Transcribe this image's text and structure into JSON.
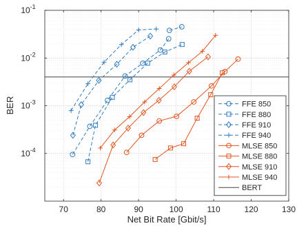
{
  "chart_data": {
    "type": "line",
    "xlabel": "Net Bit Rate [Gbit/s]",
    "ylabel": "BER",
    "xlim": [
      65,
      130
    ],
    "ylim": [
      1e-05,
      0.1
    ],
    "yscale": "log",
    "x_ticks": [
      70,
      80,
      90,
      100,
      110,
      120,
      130
    ],
    "x_tick_labels": [
      "70",
      "80",
      "90",
      "100",
      "110",
      "120",
      "130"
    ],
    "y_ticks": [
      0.0001,
      0.001,
      0.01,
      0.1
    ],
    "y_tick_labels": [
      {
        "base": "10",
        "exp": "-4"
      },
      {
        "base": "10",
        "exp": "-3"
      },
      {
        "base": "10",
        "exp": "-2"
      },
      {
        "base": "10",
        "exp": "-1"
      }
    ],
    "grid": true,
    "minor_grid": true,
    "legend_position": "bottom-right",
    "colors": {
      "ffe": "#2f7bbf",
      "mlse": "#e0541d",
      "bert": "#404040"
    },
    "series": [
      {
        "name": "FFE 850",
        "family": "ffe",
        "marker": "circle",
        "linestyle": "dashed",
        "x": [
          72.4,
          77.0,
          81.7,
          86.4,
          91.1,
          95.8,
          98.0
        ],
        "y": [
          9.5e-05,
          0.00037,
          0.0013,
          0.0042,
          0.0078,
          0.0147,
          0.0253
        ]
      },
      {
        "name": "FFE 880",
        "family": "ffe",
        "marker": "square",
        "linestyle": "dashed",
        "x": [
          76.5,
          78.5,
          83.0,
          87.7,
          92.4,
          97.0,
          101.6
        ],
        "y": [
          6.7e-05,
          0.00039,
          0.0015,
          0.0035,
          0.0078,
          0.0134,
          0.0192
        ]
      },
      {
        "name": "FFE 910",
        "family": "ffe",
        "marker": "diamond",
        "linestyle": "dashed",
        "x": [
          72.5,
          74.7,
          79.4,
          84.2,
          88.5,
          93.1
        ],
        "y": [
          0.00024,
          0.00105,
          0.0034,
          0.0074,
          0.0168,
          0.0288
        ]
      },
      {
        "name": "FFE 940",
        "family": "ffe",
        "marker": "plus",
        "linestyle": "dashed",
        "x": [
          72.0,
          76.5,
          80.8,
          85.4,
          90.0,
          94.7
        ],
        "y": [
          0.00079,
          0.0029,
          0.0082,
          0.0191,
          0.0389,
          0.0406
        ]
      },
      {
        "name": "FFE 940 ",
        "family": "ffe",
        "marker": "circle",
        "linestyle": "dashed",
        "x": [
          98.2,
          101.5
        ],
        "y": [
          0.0379,
          0.0451
        ]
      },
      {
        "name": "MLSE 850",
        "family": "mlse",
        "marker": "circle",
        "linestyle": "solid",
        "x": [
          86.8,
          90.8,
          95.5,
          100.1,
          104.7,
          109.4,
          113.0,
          116.5
        ],
        "y": [
          0.000105,
          0.00024,
          0.00048,
          0.0006,
          0.0012,
          0.0026,
          0.0052,
          0.0095
        ]
      },
      {
        "name": "MLSE 880",
        "family": "mlse",
        "marker": "square",
        "linestyle": "solid",
        "x": [
          94.4,
          98.5,
          102.0,
          105.6,
          109.2,
          112.3
        ],
        "y": [
          7.5e-05,
          0.00013,
          0.00016,
          0.00055,
          0.0017,
          0.0049
        ]
      },
      {
        "name": "MLSE 910",
        "family": "mlse",
        "marker": "diamond",
        "linestyle": "solid",
        "x": [
          79.5,
          83.2,
          87.2,
          91.3,
          95.4,
          99.5,
          103.5,
          108.5
        ],
        "y": [
          2.4e-05,
          0.00015,
          0.00034,
          0.00072,
          0.0013,
          0.0025,
          0.0053,
          0.0106
        ]
      },
      {
        "name": "MLSE 940",
        "family": "mlse",
        "marker": "plus",
        "linestyle": "solid",
        "x": [
          79.8,
          83.6,
          87.6,
          91.6,
          95.5,
          99.4,
          103.3,
          107.0,
          110.5
        ],
        "y": [
          0.00013,
          0.00031,
          0.00059,
          0.0012,
          0.0023,
          0.0044,
          0.008,
          0.0139,
          0.0299
        ]
      }
    ],
    "bert_threshold": {
      "name": "BERT",
      "y": 0.004
    },
    "legend": [
      {
        "label": "FFE 850",
        "family": "ffe",
        "marker": "circle",
        "linestyle": "dashed"
      },
      {
        "label": "FFE 880",
        "family": "ffe",
        "marker": "square",
        "linestyle": "dashed"
      },
      {
        "label": "FFE 910",
        "family": "ffe",
        "marker": "diamond",
        "linestyle": "dashed"
      },
      {
        "label": "FFE 940",
        "family": "ffe",
        "marker": "plus",
        "linestyle": "dashed"
      },
      {
        "label": "MLSE 850",
        "family": "mlse",
        "marker": "circle",
        "linestyle": "solid"
      },
      {
        "label": "MLSE 880",
        "family": "mlse",
        "marker": "square",
        "linestyle": "solid"
      },
      {
        "label": "MLSE 910",
        "family": "mlse",
        "marker": "diamond",
        "linestyle": "solid"
      },
      {
        "label": "MLSE 940",
        "family": "mlse",
        "marker": "plus",
        "linestyle": "solid"
      },
      {
        "label": "BERT",
        "family": "bert",
        "marker": "none",
        "linestyle": "solid"
      }
    ]
  }
}
